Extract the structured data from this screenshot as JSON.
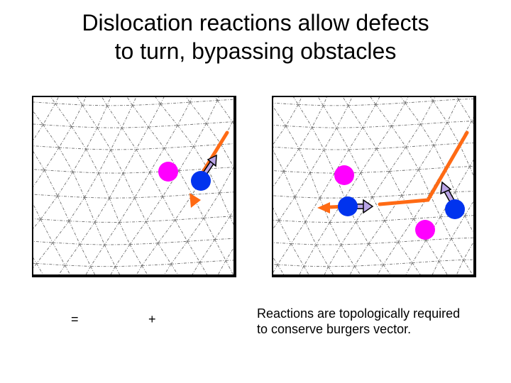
{
  "slide": {
    "title": "Dislocation reactions allow defects\nto turn, bypassing obstacles",
    "operator_equals": "=",
    "operator_plus": "+",
    "caption": "Reactions are topologically required\nto conserve burgers vector."
  },
  "colors": {
    "background": "#ffffff",
    "lattice_line": "#6f6f6f",
    "frame": "#000000",
    "vacancy_magenta": "#ff00ff",
    "interstitial_blue": "#0033ee",
    "dislocation_orange": "#ff6a14",
    "burgers_arrow": "#b9a4e6"
  },
  "panels": [
    {
      "name": "before-reaction"
    },
    {
      "name": "after-reaction"
    }
  ]
}
